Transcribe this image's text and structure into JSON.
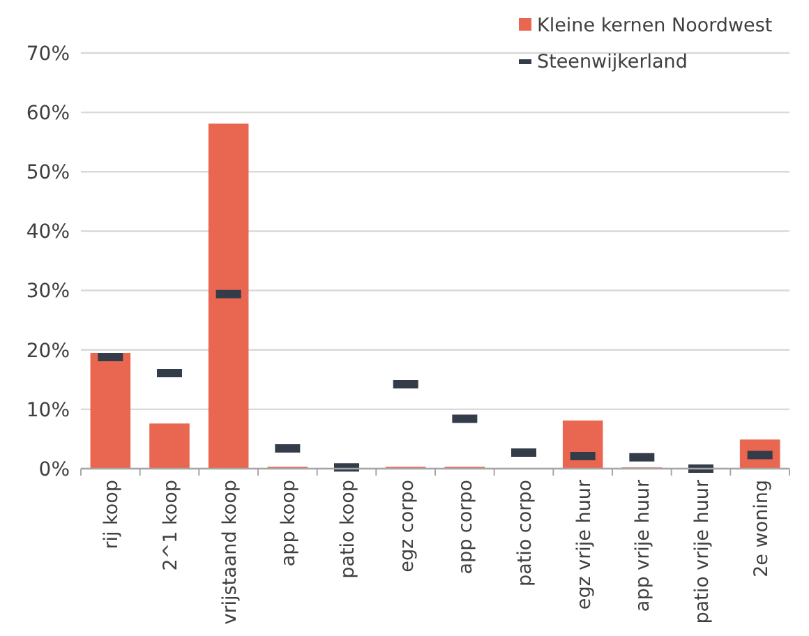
{
  "chart_data": {
    "type": "bar",
    "categories": [
      "rij koop",
      "2^1 koop",
      "vrijstaand koop",
      "app koop",
      "patio koop",
      "egz corpo",
      "app corpo",
      "patio corpo",
      "egz vrije huur",
      "app vrije huur",
      "patio vrije huur",
      "2e woning"
    ],
    "series": [
      {
        "name": "Kleine kernen Noordwest",
        "type": "bar",
        "color": "#e96651",
        "values": [
          19.5,
          7.6,
          58.1,
          0.3,
          0,
          0.3,
          0.3,
          0,
          8.1,
          0.2,
          null,
          4.9
        ]
      },
      {
        "name": "Steenwijkerland",
        "type": "scatter",
        "color": "#343c4a",
        "values": [
          18.8,
          16.1,
          29.4,
          3.4,
          0.2,
          14.2,
          8.4,
          2.7,
          2.1,
          1.9,
          0,
          2.3
        ]
      }
    ],
    "ylim": [
      0,
      70
    ],
    "yticks": [
      {
        "value": 0,
        "label": "0%"
      },
      {
        "value": 10,
        "label": "10%"
      },
      {
        "value": 20,
        "label": "20%"
      },
      {
        "value": 30,
        "label": "30%"
      },
      {
        "value": 40,
        "label": "40%"
      },
      {
        "value": 50,
        "label": "50%"
      },
      {
        "value": 60,
        "label": "60%"
      },
      {
        "value": 70,
        "label": "70%"
      }
    ],
    "grid": "y",
    "legend": "top right"
  }
}
